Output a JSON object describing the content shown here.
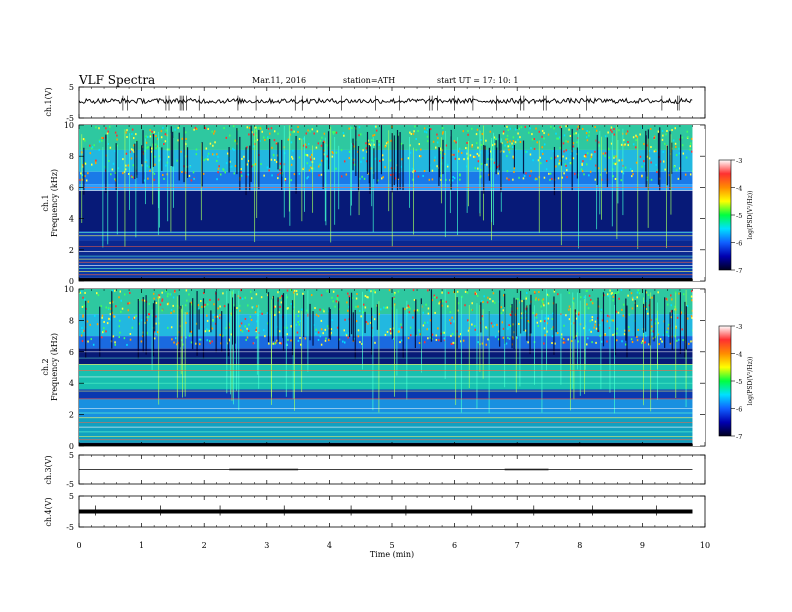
{
  "header": {
    "title": "VLF  Spectra",
    "date": "Mar.11, 2016",
    "station": "station=ATH",
    "start": "start  UT  =    17: 10: 1"
  },
  "colorbar": {
    "label": "log(PSD(V²/Hz))",
    "ticks": [
      "-3",
      "-4",
      "-5",
      "-6",
      "-7"
    ],
    "colors": [
      "#ffffff",
      "#ff3030",
      "#ff8c00",
      "#ffff00",
      "#00ff40",
      "#00e0ff",
      "#1060ff",
      "#0000b0",
      "#000020"
    ]
  },
  "chart_data": [
    {
      "type": "line",
      "name": "ch1-waveform",
      "ylabel": "ch.1(V)",
      "ylim": [
        -5,
        5
      ],
      "yticks": [
        "5",
        "-5"
      ],
      "baseline": 0.5
    },
    {
      "type": "heatmap",
      "name": "ch1-spectrogram",
      "ylabel": "ch.1\nFrequency  (kHz)",
      "ylim": [
        0,
        10
      ],
      "yticks": [
        "0",
        "2",
        "4",
        "6",
        "8",
        "10"
      ]
    },
    {
      "type": "heatmap",
      "name": "ch2-spectrogram",
      "ylabel": "ch.2\nFrequency  (kHz)",
      "ylim": [
        0,
        10
      ],
      "yticks": [
        "0",
        "2",
        "4",
        "6",
        "8",
        "10"
      ]
    },
    {
      "type": "line",
      "name": "ch3-waveform",
      "ylabel": "ch.3(V)",
      "ylim": [
        -5,
        5
      ],
      "yticks": [
        "5",
        "-5"
      ],
      "baseline": 0
    },
    {
      "type": "line",
      "name": "ch4-waveform",
      "ylabel": "ch.4(V)",
      "ylim": [
        -5,
        5
      ],
      "yticks": [
        "5",
        "-5"
      ],
      "baseline": 0
    }
  ],
  "xaxis": {
    "label": "Time  (min)",
    "xlim": [
      0,
      10
    ],
    "ticks": [
      "0",
      "1",
      "2",
      "3",
      "4",
      "5",
      "6",
      "7",
      "8",
      "9",
      "10"
    ],
    "data_end": 9.8
  }
}
